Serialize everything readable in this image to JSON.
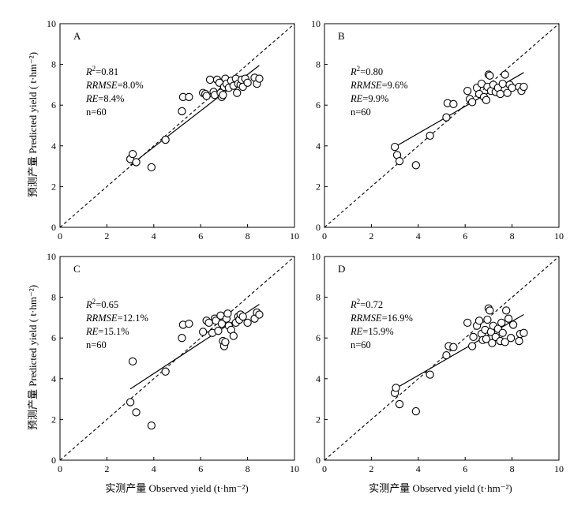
{
  "figure": {
    "y_axis_title": "预测产量 Predicted yield ( t·hm⁻²)",
    "x_axis_title": "实测产量 Observed yield (t·hm⁻²)"
  },
  "chart_data": [
    {
      "type": "scatter",
      "panel": "A",
      "xlim": [
        0,
        10
      ],
      "ylim": [
        0,
        10
      ],
      "xticks": [
        "0",
        "2",
        "4",
        "6",
        "8",
        "10"
      ],
      "yticks": [
        "0",
        "2",
        "4",
        "6",
        "8",
        "10"
      ],
      "stats": [
        {
          "label": "R",
          "sup": "2",
          "rest": "=0.81",
          "italic": true
        },
        {
          "label": "RRMSE",
          "sup": "",
          "rest": "=8.0%",
          "italic": true
        },
        {
          "label": "RE",
          "sup": "",
          "rest": "=8.4%",
          "italic": true
        },
        {
          "label": "",
          "sup": "",
          "rest": "n=60",
          "italic": false
        }
      ],
      "one_to_one_line": [
        [
          0,
          0
        ],
        [
          10,
          10
        ]
      ],
      "fit_line": [
        [
          3.0,
          3.05
        ],
        [
          8.5,
          7.95
        ]
      ],
      "points": [
        [
          3.0,
          3.35
        ],
        [
          3.1,
          3.6
        ],
        [
          3.25,
          3.2
        ],
        [
          3.9,
          2.95
        ],
        [
          4.5,
          4.3
        ],
        [
          5.2,
          5.7
        ],
        [
          5.25,
          6.4
        ],
        [
          5.5,
          6.4
        ],
        [
          6.1,
          6.6
        ],
        [
          6.2,
          6.55
        ],
        [
          6.25,
          6.45
        ],
        [
          6.4,
          7.25
        ],
        [
          6.55,
          6.65
        ],
        [
          6.6,
          6.5
        ],
        [
          6.7,
          7.25
        ],
        [
          6.8,
          7.1
        ],
        [
          6.85,
          6.6
        ],
        [
          6.9,
          6.4
        ],
        [
          6.95,
          6.5
        ],
        [
          7.0,
          6.9
        ],
        [
          7.05,
          7.3
        ],
        [
          7.1,
          7.05
        ],
        [
          7.2,
          6.85
        ],
        [
          7.3,
          7.2
        ],
        [
          7.4,
          6.95
        ],
        [
          7.5,
          7.3
        ],
        [
          7.55,
          6.6
        ],
        [
          7.6,
          7.05
        ],
        [
          7.7,
          7.0
        ],
        [
          7.75,
          7.25
        ],
        [
          7.8,
          6.9
        ],
        [
          7.9,
          7.3
        ],
        [
          8.0,
          7.1
        ],
        [
          8.3,
          7.35
        ],
        [
          8.4,
          7.05
        ],
        [
          8.5,
          7.3
        ]
      ]
    },
    {
      "type": "scatter",
      "panel": "B",
      "xlim": [
        0,
        10
      ],
      "ylim": [
        0,
        10
      ],
      "xticks": [
        "0",
        "2",
        "4",
        "6",
        "8",
        "10"
      ],
      "yticks": [
        "0",
        "2",
        "4",
        "6",
        "8",
        "10"
      ],
      "stats": [
        {
          "label": "R",
          "sup": "2",
          "rest": "=0.80",
          "italic": true
        },
        {
          "label": "RRMSE",
          "sup": "",
          "rest": "=9.6%",
          "italic": true
        },
        {
          "label": "RE",
          "sup": "",
          "rest": "=9.9%",
          "italic": true
        },
        {
          "label": "",
          "sup": "",
          "rest": "n=60",
          "italic": false
        }
      ],
      "one_to_one_line": [
        [
          0,
          0
        ],
        [
          10,
          10
        ]
      ],
      "fit_line": [
        [
          3.0,
          3.95
        ],
        [
          8.5,
          7.6
        ]
      ],
      "points": [
        [
          3.0,
          3.95
        ],
        [
          3.1,
          3.55
        ],
        [
          3.2,
          3.25
        ],
        [
          3.9,
          3.05
        ],
        [
          4.5,
          4.5
        ],
        [
          5.2,
          5.4
        ],
        [
          5.25,
          6.1
        ],
        [
          5.5,
          6.05
        ],
        [
          6.1,
          6.7
        ],
        [
          6.2,
          6.3
        ],
        [
          6.3,
          6.15
        ],
        [
          6.5,
          6.85
        ],
        [
          6.6,
          6.55
        ],
        [
          6.7,
          7.05
        ],
        [
          6.8,
          6.4
        ],
        [
          6.9,
          6.25
        ],
        [
          6.95,
          6.9
        ],
        [
          7.0,
          7.5
        ],
        [
          7.05,
          7.45
        ],
        [
          7.1,
          6.7
        ],
        [
          7.2,
          7.0
        ],
        [
          7.3,
          6.65
        ],
        [
          7.4,
          6.85
        ],
        [
          7.5,
          6.55
        ],
        [
          7.6,
          7.05
        ],
        [
          7.7,
          7.5
        ],
        [
          7.8,
          6.6
        ],
        [
          7.9,
          7.0
        ],
        [
          8.0,
          6.85
        ],
        [
          8.3,
          6.9
        ],
        [
          8.4,
          6.7
        ],
        [
          8.5,
          6.9
        ]
      ]
    },
    {
      "type": "scatter",
      "panel": "C",
      "xlim": [
        0,
        10
      ],
      "ylim": [
        0,
        10
      ],
      "xticks": [
        "0",
        "2",
        "4",
        "6",
        "8",
        "10"
      ],
      "yticks": [
        "0",
        "2",
        "4",
        "6",
        "8",
        "10"
      ],
      "stats": [
        {
          "label": "R",
          "sup": "2",
          "rest": "=0.65",
          "italic": true
        },
        {
          "label": "RRMSE",
          "sup": "",
          "rest": "=12.1%",
          "italic": true
        },
        {
          "label": "RE",
          "sup": "",
          "rest": "=15.1%",
          "italic": true
        },
        {
          "label": "",
          "sup": "",
          "rest": "n=60",
          "italic": false
        }
      ],
      "one_to_one_line": [
        [
          0,
          0
        ],
        [
          10,
          10
        ]
      ],
      "fit_line": [
        [
          3.0,
          3.5
        ],
        [
          8.5,
          7.65
        ]
      ],
      "points": [
        [
          3.0,
          2.85
        ],
        [
          3.1,
          4.85
        ],
        [
          3.25,
          2.35
        ],
        [
          3.9,
          1.7
        ],
        [
          4.5,
          4.35
        ],
        [
          5.2,
          6.0
        ],
        [
          5.25,
          6.65
        ],
        [
          5.5,
          6.7
        ],
        [
          6.1,
          6.3
        ],
        [
          6.25,
          6.85
        ],
        [
          6.35,
          6.75
        ],
        [
          6.5,
          6.25
        ],
        [
          6.6,
          6.95
        ],
        [
          6.65,
          6.85
        ],
        [
          6.75,
          6.35
        ],
        [
          6.85,
          7.1
        ],
        [
          6.9,
          6.7
        ],
        [
          6.95,
          5.85
        ],
        [
          7.0,
          5.6
        ],
        [
          7.05,
          5.8
        ],
        [
          7.1,
          6.95
        ],
        [
          7.15,
          7.2
        ],
        [
          7.2,
          6.6
        ],
        [
          7.3,
          6.4
        ],
        [
          7.4,
          6.1
        ],
        [
          7.5,
          6.75
        ],
        [
          7.6,
          7.05
        ],
        [
          7.65,
          6.9
        ],
        [
          7.7,
          7.15
        ],
        [
          7.8,
          7.05
        ],
        [
          8.0,
          6.75
        ],
        [
          8.3,
          6.95
        ],
        [
          8.4,
          7.25
        ],
        [
          8.5,
          7.15
        ]
      ]
    },
    {
      "type": "scatter",
      "panel": "D",
      "xlim": [
        0,
        10
      ],
      "ylim": [
        0,
        10
      ],
      "xticks": [
        "0",
        "2",
        "4",
        "6",
        "8",
        "10"
      ],
      "yticks": [
        "0",
        "2",
        "4",
        "6",
        "8",
        "10"
      ],
      "stats": [
        {
          "label": "R",
          "sup": "2",
          "rest": "=0.72",
          "italic": true
        },
        {
          "label": "RRMSE",
          "sup": "",
          "rest": "=16.9%",
          "italic": true
        },
        {
          "label": "RE",
          "sup": "",
          "rest": "=15.9%",
          "italic": true
        },
        {
          "label": "",
          "sup": "",
          "rest": "n=60",
          "italic": false
        }
      ],
      "one_to_one_line": [
        [
          0,
          0
        ],
        [
          10,
          10
        ]
      ],
      "fit_line": [
        [
          3.0,
          3.5
        ],
        [
          8.5,
          7.15
        ]
      ],
      "points": [
        [
          3.0,
          3.3
        ],
        [
          3.05,
          3.55
        ],
        [
          3.2,
          2.75
        ],
        [
          3.9,
          2.4
        ],
        [
          4.5,
          4.2
        ],
        [
          5.2,
          5.15
        ],
        [
          5.3,
          5.6
        ],
        [
          5.5,
          5.55
        ],
        [
          6.1,
          6.75
        ],
        [
          6.3,
          5.6
        ],
        [
          6.35,
          6.05
        ],
        [
          6.5,
          6.6
        ],
        [
          6.6,
          6.85
        ],
        [
          6.7,
          6.2
        ],
        [
          6.75,
          5.9
        ],
        [
          6.85,
          6.4
        ],
        [
          6.9,
          5.95
        ],
        [
          6.95,
          6.9
        ],
        [
          7.0,
          7.45
        ],
        [
          7.05,
          7.35
        ],
        [
          7.1,
          6.3
        ],
        [
          7.15,
          5.75
        ],
        [
          7.2,
          6.6
        ],
        [
          7.3,
          6.05
        ],
        [
          7.4,
          6.45
        ],
        [
          7.5,
          5.85
        ],
        [
          7.55,
          6.75
        ],
        [
          7.6,
          6.25
        ],
        [
          7.7,
          5.8
        ],
        [
          7.75,
          7.35
        ],
        [
          7.85,
          6.95
        ],
        [
          7.95,
          6.0
        ],
        [
          8.05,
          6.65
        ],
        [
          8.3,
          5.85
        ],
        [
          8.35,
          6.2
        ],
        [
          8.5,
          6.25
        ]
      ]
    }
  ]
}
